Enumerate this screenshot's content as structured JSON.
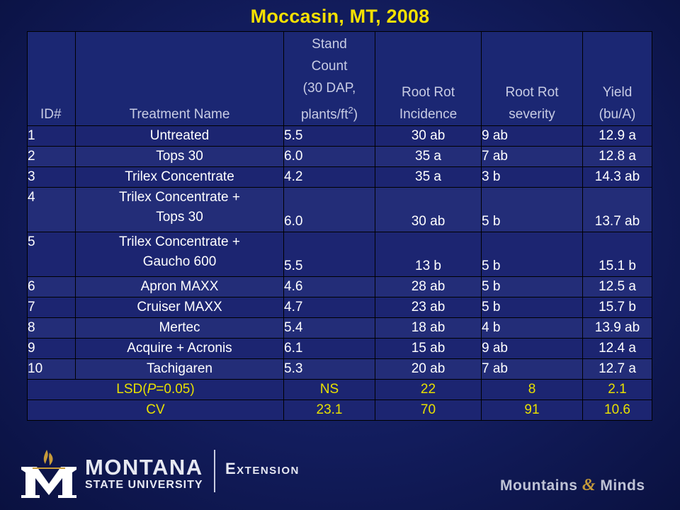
{
  "title": "Moccasin, MT, 2008",
  "headers": {
    "id": "ID#",
    "name": "Treatment Name",
    "stand_lines": [
      "Stand",
      "Count",
      "(30 DAP,",
      "plants/ft2)"
    ],
    "incidence_lines": [
      "Root Rot",
      "Incidence"
    ],
    "severity_lines": [
      "Root Rot",
      "severity"
    ],
    "yield_lines": [
      "Yield",
      "(bu/A)"
    ]
  },
  "rows": [
    {
      "id": "1",
      "name": "Untreated",
      "stand": "5.5",
      "incidence": "30 ab",
      "severity": "9 ab",
      "yield": "12.9 a"
    },
    {
      "id": "2",
      "name": "Tops 30",
      "stand": "6.0",
      "incidence": "35 a",
      "severity": "7 ab",
      "yield": "12.8 a"
    },
    {
      "id": "3",
      "name": "Trilex Concentrate",
      "stand": "4.2",
      "incidence": "35 a",
      "severity": "3 b",
      "yield": "14.3 ab"
    },
    {
      "id": "4",
      "name_lines": [
        "Trilex Concentrate +",
        "Tops 30"
      ],
      "stand": "6.0",
      "incidence": "30 ab",
      "severity": "5 b",
      "yield": "13.7 ab"
    },
    {
      "id": "5",
      "name_lines": [
        "Trilex Concentrate +",
        "Gaucho 600"
      ],
      "stand": "5.5",
      "incidence": "13 b",
      "severity": "5 b",
      "yield": "15.1 b"
    },
    {
      "id": "6",
      "name": "Apron MAXX",
      "stand": "4.6",
      "incidence": "28 ab",
      "severity": "5 b",
      "yield": "12.5 a"
    },
    {
      "id": "7",
      "name": "Cruiser MAXX",
      "stand": "4.7",
      "incidence": "23 ab",
      "severity": "5 b",
      "yield": "15.7 b"
    },
    {
      "id": "8",
      "name": "Mertec",
      "stand": "5.4",
      "incidence": "18 ab",
      "severity": "4 b",
      "yield": "13.9 ab"
    },
    {
      "id": "9",
      "name": "Acquire + Acronis",
      "stand": "6.1",
      "incidence": "15 ab",
      "severity": "9 ab",
      "yield": "12.4 a"
    },
    {
      "id": "10",
      "name": "Tachigaren",
      "stand": "5.3",
      "incidence": "20 ab",
      "severity": "7 ab",
      "yield": "12.7 a"
    }
  ],
  "lsd": {
    "label_prefix": "LSD(",
    "label_italic": "P",
    "label_suffix": "=0.05)",
    "stand": "NS",
    "incidence": "22",
    "severity": "8",
    "yield": "2.1"
  },
  "cv": {
    "label": "CV",
    "stand": "23.1",
    "incidence": "70",
    "severity": "91",
    "yield": "10.6"
  },
  "footer": {
    "brand_top": "MONTANA",
    "brand_bottom": "STATE UNIVERSITY",
    "extension": "Extension",
    "tagline_left": "Mountains",
    "tagline_amp": "&",
    "tagline_right": "Minds"
  },
  "colors": {
    "title": "#f4e000",
    "stat_text": "#e8e000",
    "cell_text": "#ffffff",
    "header_text": "#c8cce4",
    "logo_gold": "#c79b3a"
  }
}
